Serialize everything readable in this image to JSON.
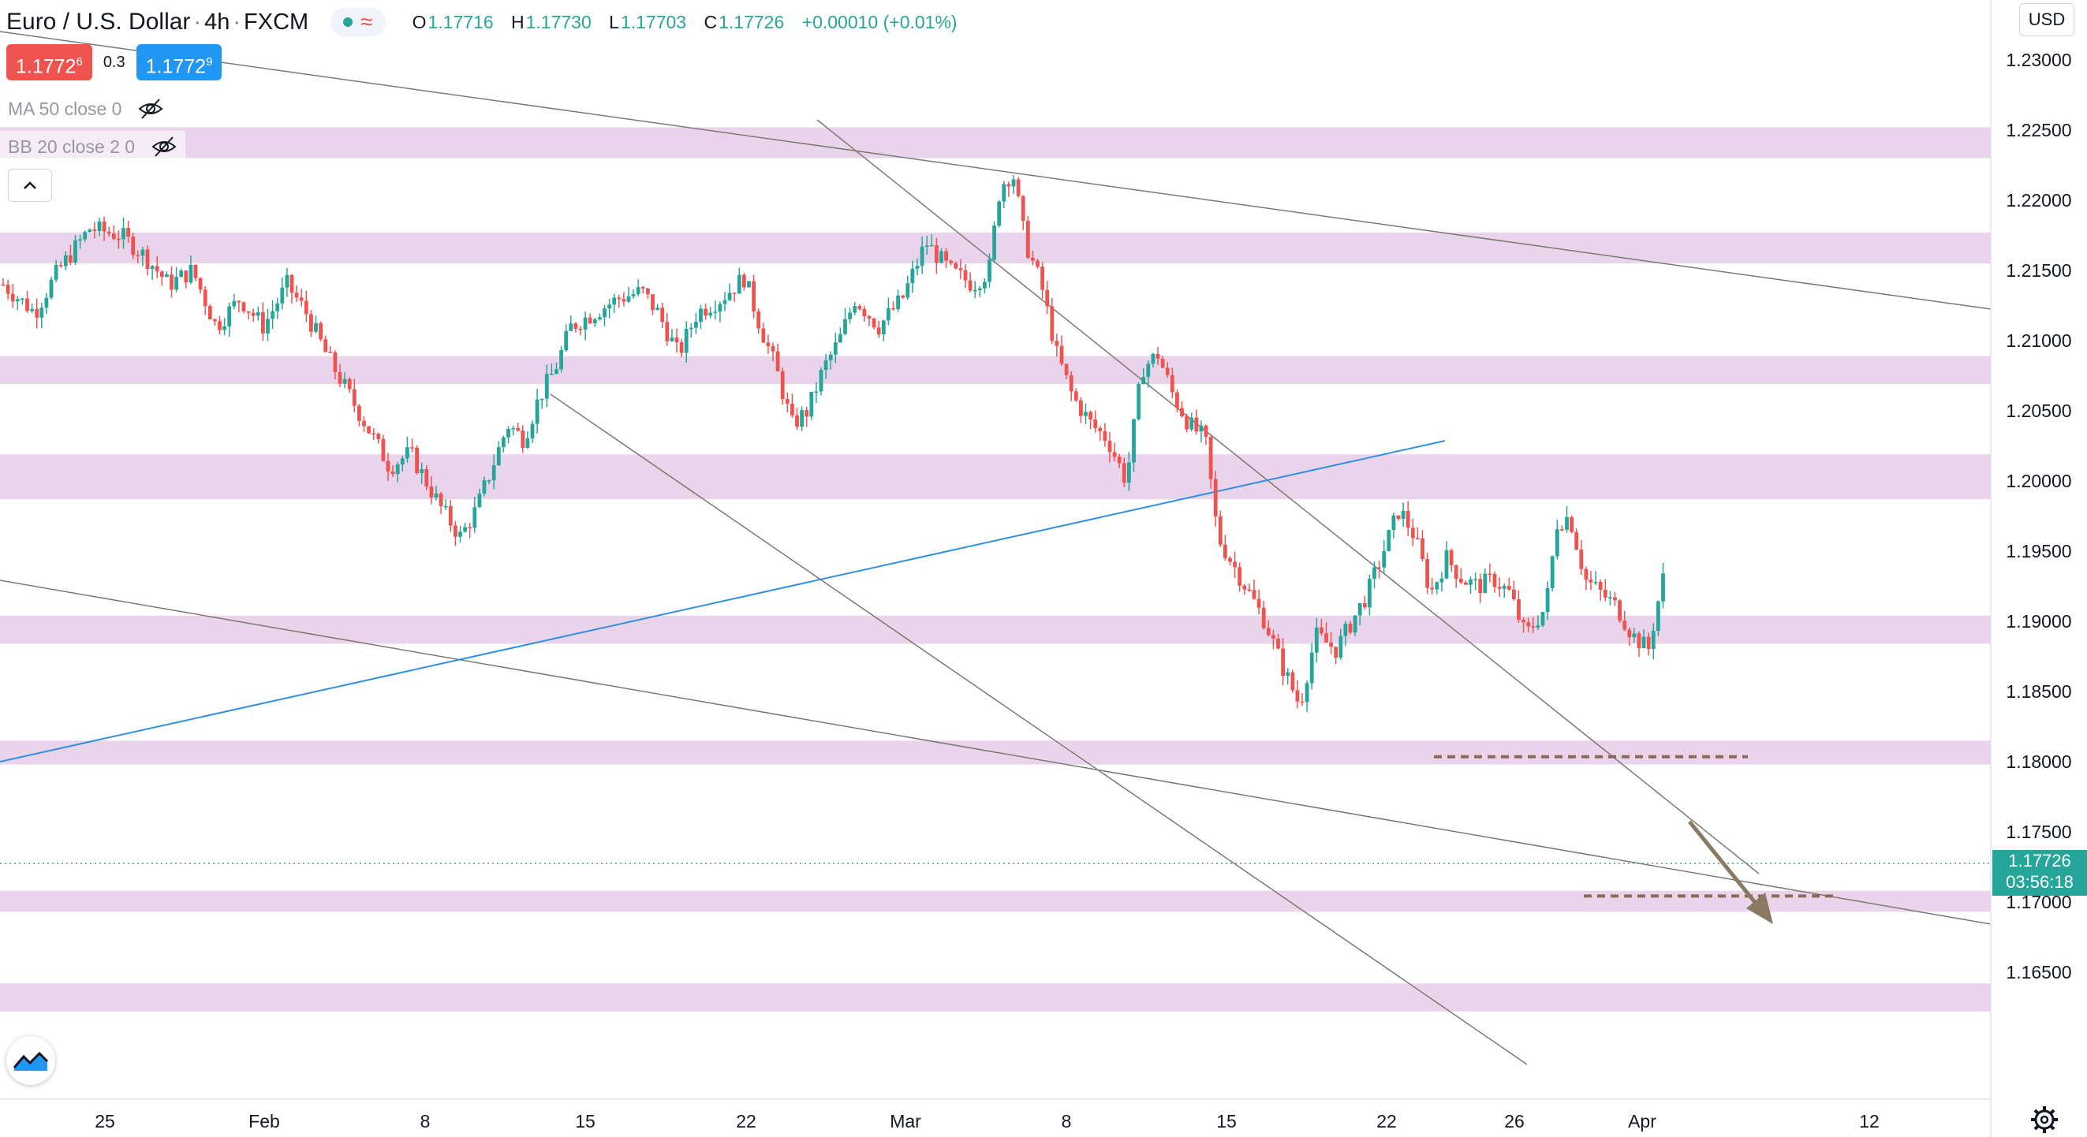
{
  "header": {
    "symbol": "Euro / U.S. Dollar",
    "interval": "4h",
    "exchange": "FXCM",
    "ohlc": {
      "open_label": "O",
      "open": "1.17716",
      "high_label": "H",
      "high": "1.17730",
      "low_label": "L",
      "low": "1.17703",
      "close_label": "C",
      "close": "1.17726",
      "change": "+0.00010 (+0.01%)"
    }
  },
  "quote": {
    "sell_main": "1.1772",
    "sell_sup": "6",
    "spread": "0.3",
    "buy_main": "1.1772",
    "buy_sup": "9"
  },
  "indicators": [
    {
      "label": "MA 50 close 0"
    },
    {
      "label": "BB 20 close 2 0"
    }
  ],
  "currency": "USD",
  "last_price": {
    "value": "1.17726",
    "countdown": "03:56:18",
    "color": "#26a69a"
  },
  "colors": {
    "up": "#26a69a",
    "down": "#ef5350",
    "zone": "#e6cde9",
    "trend": "#7d7972",
    "blue": "#2f8fe3",
    "target": "#8b7a63"
  },
  "icons": [
    "eye-crossed-icon",
    "chevron-up-icon",
    "tradingview-logo-icon",
    "gear-icon"
  ],
  "chart_data": {
    "type": "candlestick",
    "instrument": "EUR/USD",
    "ylim": [
      1.1615,
      1.2335
    ],
    "y_ticks": [
      "1.23000",
      "1.22500",
      "1.22000",
      "1.21500",
      "1.21000",
      "1.20500",
      "1.20000",
      "1.19500",
      "1.19000",
      "1.18500",
      "1.18000",
      "1.17500",
      "1.17000",
      "1.16500"
    ],
    "x_ticks": [
      "25",
      "Feb",
      "8",
      "15",
      "22",
      "Mar",
      "8",
      "15",
      "22",
      "26",
      "Apr",
      "12"
    ],
    "zones": [
      [
        1.223,
        1.2252
      ],
      [
        1.2155,
        1.2177
      ],
      [
        1.2069,
        1.2089
      ],
      [
        1.1987,
        1.2019
      ],
      [
        1.1884,
        1.1904
      ],
      [
        1.1798,
        1.1815
      ],
      [
        1.1693,
        1.1708
      ],
      [
        1.1622,
        1.1642
      ]
    ],
    "dashed_levels": [
      1.18035,
      1.17043
    ],
    "price_path": [
      [
        0,
        1.214
      ],
      [
        20,
        1.212
      ],
      [
        35,
        1.215
      ],
      [
        55,
        1.218
      ],
      [
        75,
        1.2175
      ],
      [
        90,
        1.216
      ],
      [
        105,
        1.214
      ],
      [
        120,
        1.215
      ],
      [
        135,
        1.211
      ],
      [
        150,
        1.213
      ],
      [
        165,
        1.211
      ],
      [
        180,
        1.214
      ],
      [
        192,
        1.212
      ],
      [
        205,
        1.209
      ],
      [
        215,
        1.207
      ],
      [
        225,
        1.205
      ],
      [
        235,
        1.203
      ],
      [
        245,
        1.201
      ],
      [
        258,
        1.202
      ],
      [
        268,
        1.2
      ],
      [
        278,
        1.198
      ],
      [
        290,
        1.196
      ],
      [
        300,
        1.198
      ],
      [
        310,
        1.201
      ],
      [
        320,
        1.204
      ],
      [
        330,
        1.203
      ],
      [
        340,
        1.206
      ],
      [
        350,
        1.208
      ],
      [
        360,
        1.211
      ],
      [
        375,
        1.212
      ],
      [
        390,
        1.213
      ],
      [
        405,
        1.2135
      ],
      [
        415,
        1.212
      ],
      [
        428,
        1.209
      ],
      [
        440,
        1.212
      ],
      [
        455,
        1.213
      ],
      [
        470,
        1.2145
      ],
      [
        480,
        1.211
      ],
      [
        490,
        1.208
      ],
      [
        500,
        1.204
      ],
      [
        510,
        1.205
      ],
      [
        520,
        1.208
      ],
      [
        530,
        1.21
      ],
      [
        540,
        1.213
      ],
      [
        555,
        1.211
      ],
      [
        570,
        1.213
      ],
      [
        585,
        1.217
      ],
      [
        600,
        1.215
      ],
      [
        615,
        1.214
      ],
      [
        625,
        1.215
      ],
      [
        632,
        1.221
      ],
      [
        640,
        1.222
      ],
      [
        648,
        1.217
      ],
      [
        658,
        1.214
      ],
      [
        668,
        1.209
      ],
      [
        678,
        1.206
      ],
      [
        690,
        1.204
      ],
      [
        700,
        1.203
      ],
      [
        712,
        1.2
      ],
      [
        722,
        1.208
      ],
      [
        732,
        1.209
      ],
      [
        742,
        1.206
      ],
      [
        752,
        1.204
      ],
      [
        762,
        1.203
      ],
      [
        770,
        1.196
      ],
      [
        780,
        1.194
      ],
      [
        790,
        1.192
      ],
      [
        800,
        1.19
      ],
      [
        810,
        1.187
      ],
      [
        822,
        1.184
      ],
      [
        832,
        1.189
      ],
      [
        845,
        1.188
      ],
      [
        855,
        1.19
      ],
      [
        865,
        1.192
      ],
      [
        875,
        1.195
      ],
      [
        885,
        1.198
      ],
      [
        895,
        1.196
      ],
      [
        905,
        1.192
      ],
      [
        915,
        1.1945
      ],
      [
        925,
        1.193
      ],
      [
        935,
        1.1925
      ],
      [
        945,
        1.193
      ],
      [
        955,
        1.192
      ],
      [
        965,
        1.189
      ],
      [
        978,
        1.191
      ],
      [
        985,
        1.197
      ],
      [
        993,
        1.1975
      ],
      [
        1003,
        1.193
      ],
      [
        1013,
        1.192
      ],
      [
        1023,
        1.191
      ],
      [
        1033,
        1.189
      ],
      [
        1043,
        1.188
      ],
      [
        1052,
        1.193
      ],
      [
        1062,
        1.194
      ],
      [
        1072,
        1.191
      ],
      [
        1080,
        1.187
      ],
      [
        1090,
        1.185
      ],
      [
        1100,
        1.183
      ],
      [
        1110,
        1.182
      ],
      [
        1120,
        1.18
      ],
      [
        1128,
        1.176
      ],
      [
        1138,
        1.178
      ],
      [
        1148,
        1.179
      ],
      [
        1158,
        1.178
      ],
      [
        1168,
        1.177
      ],
      [
        1178,
        1.176
      ],
      [
        1188,
        1.174
      ],
      [
        1198,
        1.171
      ],
      [
        1208,
        1.1705
      ],
      [
        1218,
        1.174
      ],
      [
        1228,
        1.173
      ],
      [
        1238,
        1.172
      ],
      [
        1246,
        1.1765
      ],
      [
        1256,
        1.1772
      ]
    ],
    "annotation": "projected move down from 1.1803 toward 1.1737"
  }
}
